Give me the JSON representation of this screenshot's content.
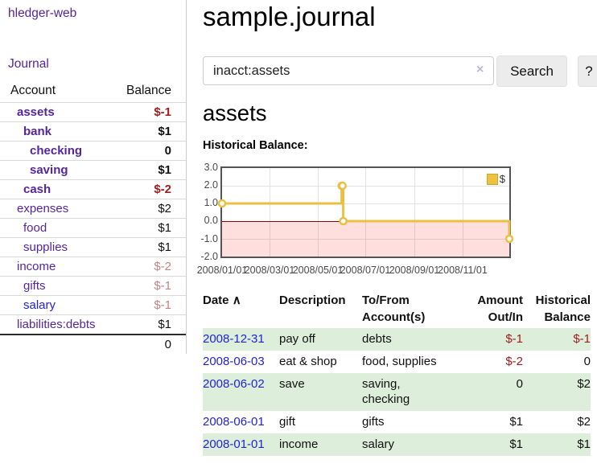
{
  "sidebar": {
    "app_title": "hledger-web",
    "journal_link": "Journal",
    "header": {
      "account": "Account",
      "balance": "Balance"
    },
    "accounts": [
      {
        "name": "assets",
        "balance": "$-1",
        "depth": 1,
        "bold": true
      },
      {
        "name": "bank",
        "balance": "$1",
        "depth": 2,
        "bold": true
      },
      {
        "name": "checking",
        "balance": "0",
        "depth": 3,
        "bold": true
      },
      {
        "name": "saving",
        "balance": "$1",
        "depth": 3,
        "bold": true
      },
      {
        "name": "cash",
        "balance": "$-2",
        "depth": 2,
        "bold": true
      },
      {
        "name": "expenses",
        "balance": "$2",
        "depth": 1,
        "bold": false
      },
      {
        "name": "food",
        "balance": "$1",
        "depth": 2,
        "bold": false
      },
      {
        "name": "supplies",
        "balance": "$1",
        "depth": 2,
        "bold": false
      },
      {
        "name": "income",
        "balance": "$-2",
        "depth": 1,
        "bold": false
      },
      {
        "name": "gifts",
        "balance": "$-1",
        "depth": 2,
        "bold": false
      },
      {
        "name": "salary",
        "balance": "$-1",
        "depth": 2,
        "bold": false
      },
      {
        "name": "liabilities:debts",
        "balance": "$1",
        "depth": 1,
        "bold": false
      }
    ],
    "total": "0"
  },
  "main": {
    "title": "sample.journal",
    "search": {
      "value": "inacct:assets",
      "clear_icon": "×",
      "search_button": "Search",
      "help_button": "?"
    },
    "account_heading": "assets",
    "chart_label": "Historical Balance:"
  },
  "chart_data": {
    "type": "line",
    "title": "Historical Balance",
    "step": true,
    "legend_label": "$",
    "legend_position": "top-right",
    "line_color": "#e9c044",
    "negative_region_color": "rgba(255,0,0,0.13)",
    "zero_line_color": "#8b0000",
    "grid": true,
    "ylim": [
      -2.0,
      3.0
    ],
    "xlim": [
      "2008-01-01",
      "2008-12-31"
    ],
    "y_ticks": [
      "3.0",
      "2.0",
      "1.0",
      "0.0",
      "-1.0",
      "-2.0"
    ],
    "x_ticks": [
      "2008/01/01",
      "2008/03/01",
      "2008/05/01",
      "2008/07/01",
      "2008/09/01",
      "2008/11/01"
    ],
    "series": [
      {
        "name": "$",
        "points": [
          [
            "2008-01-01",
            1
          ],
          [
            "2008-06-01",
            2
          ],
          [
            "2008-06-02",
            2
          ],
          [
            "2008-06-03",
            0
          ],
          [
            "2008-12-31",
            -1
          ]
        ]
      }
    ]
  },
  "table": {
    "sort_icon": "∧",
    "headers": {
      "date": "Date",
      "description": "Description",
      "tofrom_1": "To/From",
      "tofrom_2": "Account(s)",
      "amount_1": "Amount",
      "amount_2": "Out/In",
      "balance_1": "Historical",
      "balance_2": "Balance"
    },
    "rows": [
      {
        "date": "2008-12-31",
        "description": "pay off",
        "accounts": "debts",
        "amount": "$-1",
        "balance": "$-1"
      },
      {
        "date": "2008-06-03",
        "description": "eat & shop",
        "accounts": "food, supplies",
        "amount": "$-2",
        "balance": "0"
      },
      {
        "date": "2008-06-02",
        "description": "save",
        "accounts": "saving, checking",
        "amount": "0",
        "balance": "$2"
      },
      {
        "date": "2008-06-01",
        "description": "gift",
        "accounts": "gifts",
        "amount": "$1",
        "balance": "$2"
      },
      {
        "date": "2008-01-01",
        "description": "income",
        "accounts": "salary",
        "amount": "$1",
        "balance": "$1"
      }
    ]
  },
  "colors": {
    "link_purple": "#55269b",
    "link_blue": "#2323d3",
    "negative_strong": "#a11c1c",
    "negative_muted": "#c28383",
    "table_negative": "#9e1b1b",
    "stripe_green": "#ddefdb",
    "chart_gold": "#e9c044",
    "chart_border": "#545454"
  }
}
